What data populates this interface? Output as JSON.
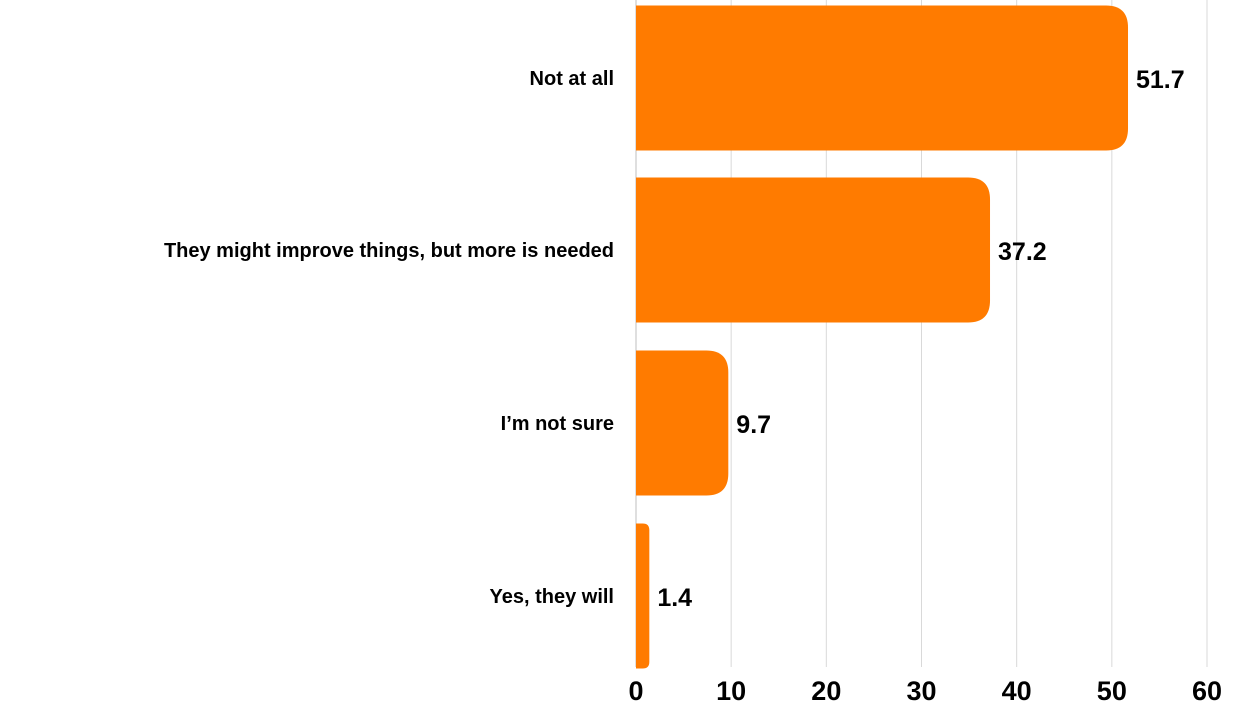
{
  "chart_data": {
    "type": "bar",
    "orientation": "horizontal",
    "categories": [
      "Not at all",
      "They might improve things, but more is needed",
      "I’m not sure",
      "Yes, they will"
    ],
    "values": [
      51.7,
      37.2,
      9.7,
      1.4
    ],
    "data_labels": [
      "51.7",
      "37.2",
      "9.7",
      "1.4"
    ],
    "title": "",
    "xlabel": "",
    "ylabel": "",
    "xlim": [
      0,
      60
    ],
    "x_ticks": [
      0,
      10,
      20,
      30,
      40,
      50,
      60
    ],
    "x_tick_labels": [
      "0",
      "10",
      "20",
      "30",
      "40",
      "50",
      "60"
    ],
    "grid": "vertical",
    "legend": "none",
    "colors": {
      "bar": "#FF7B00",
      "grid": "#D9D9D9",
      "axis": "#BFBFBF",
      "text": "#000000"
    }
  }
}
